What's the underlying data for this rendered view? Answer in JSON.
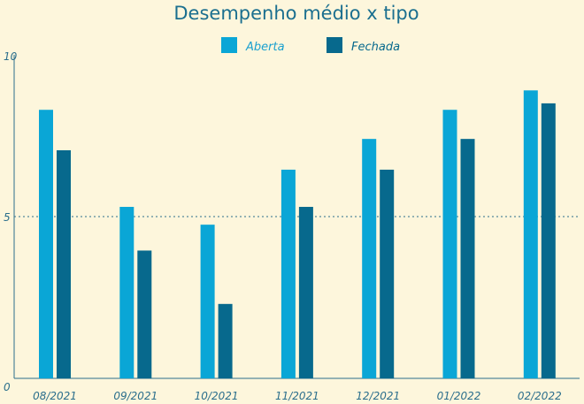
{
  "chart_data": {
    "type": "bar",
    "title": "Desempenho médio x tipo",
    "categories": [
      "08/2021",
      "09/2021",
      "10/2021",
      "11/2021",
      "12/2021",
      "01/2022",
      "02/2022"
    ],
    "series": [
      {
        "name": "Aberta",
        "color": "#0aa6d6",
        "values": [
          8.3,
          5.3,
          4.75,
          6.45,
          7.4,
          8.3,
          8.9
        ]
      },
      {
        "name": "Fechada",
        "color": "#07698d",
        "values": [
          7.05,
          3.95,
          2.3,
          5.3,
          6.45,
          7.4,
          8.5
        ]
      }
    ],
    "ylim": [
      0,
      10
    ],
    "yticks": [
      "0",
      "5",
      "10"
    ],
    "reference_line": 5,
    "legend_position": "top-center",
    "grid": false
  }
}
